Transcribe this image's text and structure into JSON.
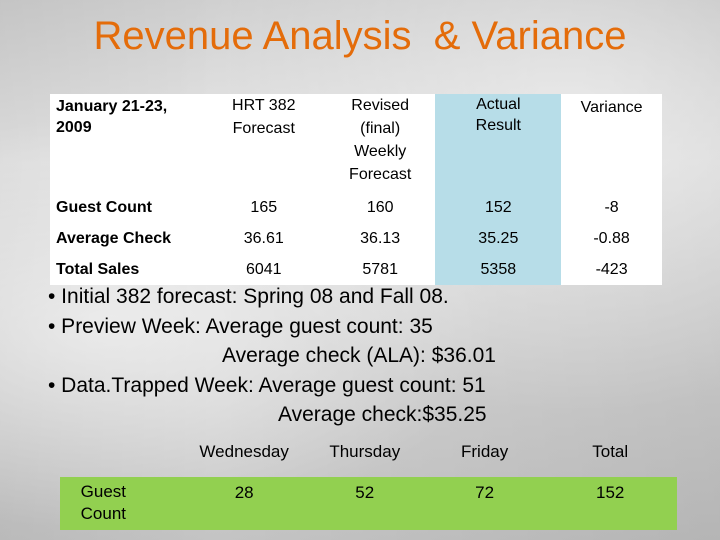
{
  "title": "Revenue Analysis  & Variance",
  "top_table": {
    "headers": [
      "January 21-23, 2009",
      "HRT 382 Forecast",
      "Revised (final) Weekly Forecast",
      "Actual Result",
      "Variance"
    ],
    "rows": [
      {
        "label": "Guest Count",
        "values": [
          "165",
          "160",
          "152",
          "-8"
        ]
      },
      {
        "label": "Average Check",
        "values": [
          "36.61",
          "36.13",
          "35.25",
          "-0.88"
        ]
      },
      {
        "label": "Total Sales",
        "values": [
          "6041",
          "5781",
          "5358",
          "-423"
        ]
      }
    ]
  },
  "bullets": [
    "• Initial 382 forecast: Spring 08 and Fall 08.",
    "• Preview Week: Average guest count: 35",
    "Average check (ALA): $36.01",
    "• Data.Trapped Week: Average guest count: 51",
    "Average check:$35.25"
  ],
  "bottom_table": {
    "headers": [
      "",
      "Wednesday",
      "Thursday",
      "Friday",
      "Total"
    ],
    "row": {
      "label": "Guest Count",
      "values": [
        "28",
        "52",
        "72",
        "152"
      ]
    }
  },
  "colors": {
    "title": "#e46c0a",
    "teal_cell": "#b7dde8",
    "green_row": "#92d050"
  }
}
